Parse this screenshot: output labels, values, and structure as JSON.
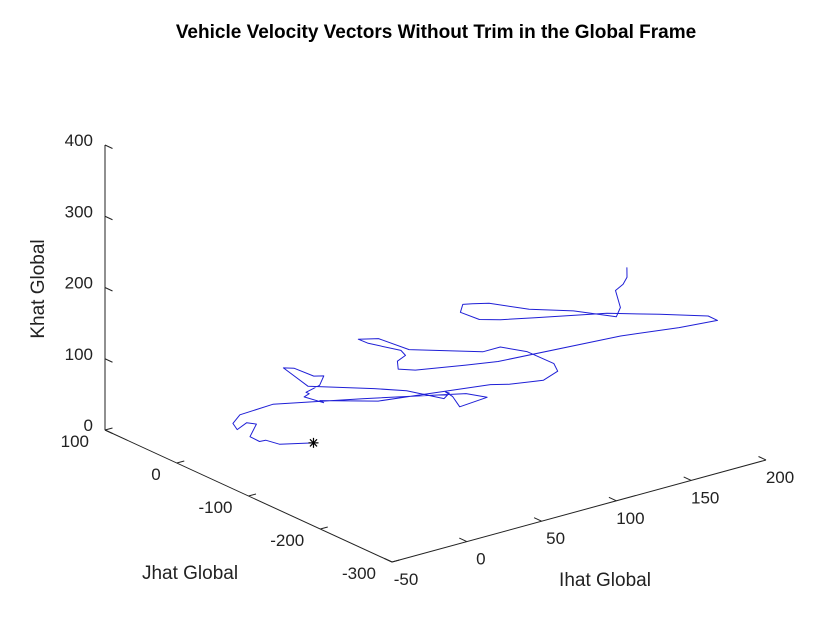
{
  "chart_data": {
    "type": "line",
    "projection": "3d",
    "title": "Vehicle Velocity Vectors Without Trim in the Global Frame",
    "xlabel": "Ihat Global",
    "ylabel": "Jhat Global",
    "zlabel": "Khat Global",
    "xlim": [
      -50,
      200
    ],
    "ylim": [
      -300,
      100
    ],
    "zlim": [
      0,
      400
    ],
    "xticks": [
      "-50",
      "0",
      "50",
      "100",
      "150",
      "200"
    ],
    "yticks": [
      "100",
      "0",
      "-100",
      "-200",
      "-300"
    ],
    "zticks": [
      "0",
      "100",
      "200",
      "300",
      "400"
    ],
    "grid": false,
    "series": [
      {
        "color": "#1f1fd6",
        "points": [
          [
            23.8,
            -36.7,
            3.0
          ],
          [
            8.3,
            -21.5,
            2.9
          ],
          [
            4.0,
            -11.4,
            6.4
          ],
          [
            3.0,
            -4.8,
            2.0
          ],
          [
            3.2,
            8.9,
            2.3
          ],
          [
            11.4,
            17.0,
            11.5
          ],
          [
            4.6,
            16.4,
            17.7
          ],
          [
            0.0,
            20.0,
            9.0
          ],
          [
            5.6,
            37.6,
            6.3
          ],
          [
            13.2,
            43.7,
            11.2
          ],
          [
            31.7,
            36.5,
            18.7
          ],
          [
            73.3,
            -1.5,
            20.3
          ],
          [
            117.1,
            -54.9,
            27.1
          ],
          [
            118.3,
            -81.6,
            33.6
          ],
          [
            90.7,
            -101.0,
            45.1
          ],
          [
            85.7,
            -101.6,
            62.5
          ],
          [
            81.1,
            -101.2,
            71.6
          ],
          [
            83.2,
            -102.2,
            69.1
          ],
          [
            79.7,
            -102.1,
            63.4
          ],
          [
            53.2,
            -105.2,
            91.0
          ],
          [
            37.9,
            -91.9,
            96.6
          ],
          [
            12.3,
            -53.1,
            96.6
          ],
          [
            5.1,
            -33.7,
            117.5
          ],
          [
            8.9,
            -41.0,
            118.2
          ],
          [
            16.1,
            -53.2,
            108.8
          ],
          [
            19.5,
            -60.1,
            110.3
          ],
          [
            17.7,
            -57.9,
            97.1
          ],
          [
            12.3,
            -50.3,
            86.9
          ],
          [
            12.0,
            -55.3,
            87.4
          ],
          [
            8.0,
            -56.5,
            85.7
          ],
          [
            11.2,
            -77.1,
            85.3
          ],
          [
            10.1,
            -74.1,
            87.5
          ],
          [
            30.4,
            -113.2,
            93.3
          ],
          [
            45.6,
            -127.0,
            97.7
          ],
          [
            87.1,
            -151.3,
            101.6
          ],
          [
            93.6,
            -163.9,
            104.2
          ],
          [
            101.5,
            -195.0,
            119.6
          ],
          [
            108.7,
            -200.0,
            130.6
          ],
          [
            106.8,
            -198.7,
            141.7
          ],
          [
            89.4,
            -197.3,
            167.9
          ],
          [
            80.8,
            -178.2,
            170.4
          ],
          [
            69.2,
            -178.0,
            170.2
          ],
          [
            38.4,
            -139.5,
            173.1
          ],
          [
            27.9,
            -118.7,
            185.0
          ],
          [
            20.7,
            -105.6,
            182.2
          ],
          [
            20.4,
            -120.0,
            183.2
          ],
          [
            31.3,
            -142.9,
            177.6
          ],
          [
            30.9,
            -150.1,
            174.2
          ],
          [
            26.0,
            -149.0,
            168.3
          ],
          [
            24.0,
            -154.4,
            160.9
          ],
          [
            29.2,
            -167.4,
            162.6
          ],
          [
            52.3,
            -189.6,
            166.6
          ],
          [
            69.8,
            -198.1,
            165.6
          ],
          [
            138.4,
            -225.8,
            175.0
          ],
          [
            160.0,
            -262.3,
            191.3
          ],
          [
            168.3,
            -298.5,
            213.4
          ],
          [
            153.0,
            -317.4,
            237.1
          ],
          [
            117.7,
            -323.2,
            262.3
          ],
          [
            93.0,
            -301.3,
            267.8
          ],
          [
            59.6,
            -270.7,
            266.4
          ],
          [
            47.3,
            -248.4,
            260.5
          ],
          [
            40.9,
            -232.3,
            257.0
          ],
          [
            33.4,
            -221.4,
            266.3
          ],
          [
            33.5,
            -224.6,
            278.8
          ],
          [
            36.5,
            -231.7,
            281.4
          ],
          [
            42.9,
            -241.6,
            282.8
          ],
          [
            57.8,
            -266.4,
            277.4
          ],
          [
            81.0,
            -279.8,
            268.0
          ],
          [
            103.2,
            -293.2,
            253.2
          ],
          [
            102.0,
            -301.4,
            270.8
          ],
          [
            97.7,
            -303.6,
            298.2
          ],
          [
            101.5,
            -306.2,
            305.9
          ],
          [
            97.8,
            -319.4,
            324.1
          ],
          [
            96.4,
            -322.1,
            339.5
          ]
        ]
      }
    ],
    "start_marker": {
      "symbol": "*",
      "point": [
        23.8,
        -36.7,
        3.0
      ]
    }
  }
}
